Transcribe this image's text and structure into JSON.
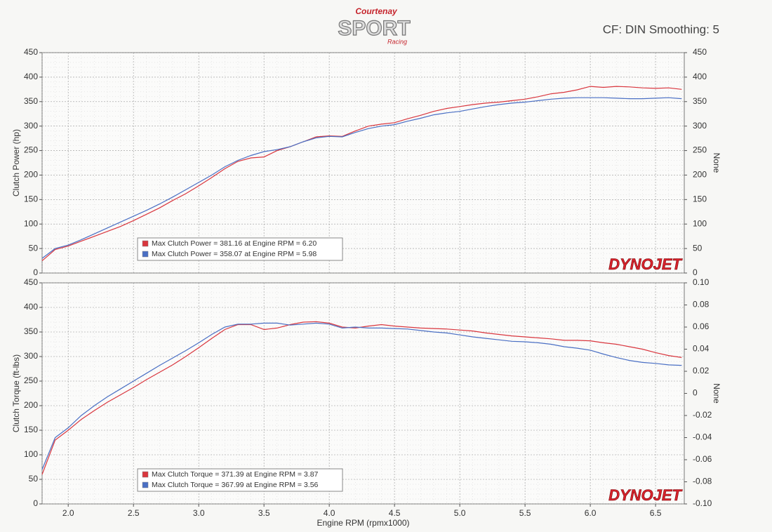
{
  "header": {
    "logo_top": "Courtenay",
    "logo_main": "SPORT",
    "logo_sub": "Racing",
    "info": "CF: DIN Smoothing: 5"
  },
  "chart_data": [
    {
      "type": "line",
      "ylabel": "Clutch Power (hp)",
      "y2label": "None",
      "watermark": "DYNOJET",
      "grid": true,
      "legend": "bottom-left",
      "x": [
        1.8,
        1.9,
        2.0,
        2.1,
        2.2,
        2.3,
        2.4,
        2.5,
        2.6,
        2.7,
        2.8,
        2.9,
        3.0,
        3.1,
        3.2,
        3.3,
        3.4,
        3.5,
        3.6,
        3.7,
        3.8,
        3.9,
        4.0,
        4.1,
        4.2,
        4.3,
        4.4,
        4.5,
        4.6,
        4.7,
        4.8,
        4.9,
        5.0,
        5.1,
        5.2,
        5.3,
        5.4,
        5.5,
        5.6,
        5.7,
        5.8,
        5.9,
        6.0,
        6.1,
        6.2,
        6.3,
        6.4,
        6.5,
        6.6,
        6.7
      ],
      "xlim": [
        1.8,
        6.72
      ],
      "ylim": [
        0,
        450
      ],
      "yticks": [
        0,
        50,
        100,
        150,
        200,
        250,
        300,
        350,
        400,
        450
      ],
      "y2lim": [
        0,
        450
      ],
      "y2ticks": [
        0,
        50,
        100,
        150,
        200,
        250,
        300,
        350,
        400,
        450
      ],
      "series": [
        {
          "name": "Max Clutch Power = 381.16 at Engine RPM = 6.20",
          "color": "#d9363e",
          "values": [
            25,
            48,
            55,
            65,
            75,
            85,
            95,
            107,
            120,
            133,
            148,
            162,
            178,
            195,
            213,
            228,
            235,
            237,
            250,
            258,
            268,
            278,
            280,
            279,
            290,
            300,
            304,
            307,
            315,
            322,
            330,
            336,
            340,
            344,
            347,
            349,
            352,
            355,
            360,
            366,
            369,
            374,
            381,
            379,
            381,
            380,
            378,
            377,
            378,
            375
          ]
        },
        {
          "name": "Max Clutch Power = 358.07 at Engine RPM = 5.98",
          "color": "#4a6fc4",
          "values": [
            30,
            50,
            57,
            68,
            80,
            92,
            104,
            116,
            128,
            141,
            155,
            170,
            185,
            200,
            217,
            230,
            240,
            248,
            252,
            258,
            268,
            276,
            279,
            278,
            287,
            295,
            300,
            303,
            310,
            316,
            323,
            327,
            330,
            335,
            340,
            344,
            347,
            349,
            352,
            355,
            357,
            358,
            358,
            358,
            357,
            356,
            356,
            357,
            358,
            356
          ]
        }
      ]
    },
    {
      "type": "line",
      "ylabel": "Clutch Torque (ft-lbs)",
      "y2label": "None",
      "xlabel": "Engine RPM (rpmx1000)",
      "watermark": "DYNOJET",
      "grid": true,
      "legend": "bottom-left",
      "x": [
        1.8,
        1.9,
        2.0,
        2.1,
        2.2,
        2.3,
        2.4,
        2.5,
        2.6,
        2.7,
        2.8,
        2.9,
        3.0,
        3.1,
        3.2,
        3.3,
        3.4,
        3.5,
        3.6,
        3.7,
        3.8,
        3.9,
        4.0,
        4.1,
        4.2,
        4.3,
        4.4,
        4.5,
        4.6,
        4.7,
        4.8,
        4.9,
        5.0,
        5.1,
        5.2,
        5.3,
        5.4,
        5.5,
        5.6,
        5.7,
        5.8,
        5.9,
        6.0,
        6.1,
        6.2,
        6.3,
        6.4,
        6.5,
        6.6,
        6.7
      ],
      "xlim": [
        1.8,
        6.72
      ],
      "xticks": [
        {
          "value": 2,
          "label": "2.0"
        },
        2.5,
        {
          "value": 3,
          "label": "3.0"
        },
        3.5,
        {
          "value": 4,
          "label": "4.0"
        },
        4.5,
        {
          "value": 5,
          "label": "5.0"
        },
        5.5,
        {
          "value": 6,
          "label": "6.0"
        },
        6.5
      ],
      "ylim": [
        0,
        450
      ],
      "yticks": [
        0,
        50,
        100,
        150,
        200,
        250,
        300,
        350,
        400,
        450
      ],
      "y2lim": [
        -0.1,
        0.1
      ],
      "y2ticks": [
        {
          "value": -0.1,
          "label": "-0.10"
        },
        -0.08,
        -0.06,
        -0.04,
        -0.02,
        0,
        0.02,
        0.04,
        0.06,
        0.08,
        {
          "value": 0.1,
          "label": "0.10"
        }
      ],
      "series": [
        {
          "name": "Max Clutch Torque = 371.39 at Engine RPM = 3.87",
          "color": "#d9363e",
          "values": [
            60,
            130,
            150,
            172,
            190,
            207,
            222,
            237,
            253,
            268,
            283,
            300,
            318,
            337,
            355,
            365,
            365,
            355,
            358,
            365,
            370,
            371,
            368,
            360,
            358,
            362,
            365,
            362,
            360,
            358,
            357,
            356,
            354,
            352,
            348,
            345,
            342,
            340,
            338,
            336,
            333,
            333,
            332,
            328,
            325,
            320,
            315,
            308,
            302,
            298
          ]
        },
        {
          "name": "Max Clutch Torque = 367.99 at Engine RPM = 3.56",
          "color": "#4a6fc4",
          "values": [
            70,
            135,
            155,
            180,
            200,
            218,
            234,
            250,
            266,
            282,
            297,
            312,
            328,
            345,
            360,
            366,
            366,
            368,
            368,
            364,
            366,
            368,
            366,
            358,
            360,
            358,
            358,
            357,
            356,
            353,
            350,
            348,
            344,
            340,
            337,
            334,
            331,
            330,
            328,
            325,
            320,
            317,
            313,
            305,
            298,
            292,
            288,
            286,
            283,
            282
          ]
        }
      ]
    }
  ]
}
